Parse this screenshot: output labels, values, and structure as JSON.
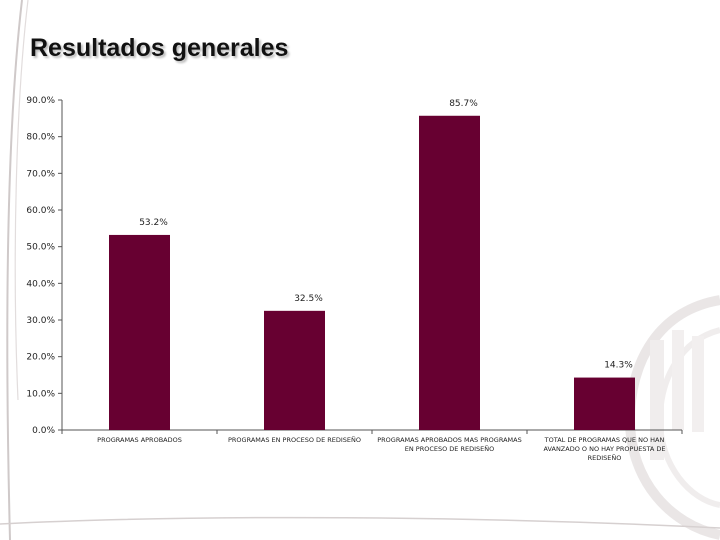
{
  "slide": {
    "title": "Resultados generales",
    "colors": {
      "bar": "#670031",
      "title_shadow": "#b9b9b9",
      "frame": "#cfc9c9",
      "watermark": "#d9d3d3"
    },
    "decor_icon": "ipn-watermark-logo"
  },
  "chart_data": {
    "type": "bar",
    "categories": [
      [
        "PROGRAMAS APROBADOS"
      ],
      [
        "PROGRAMAS EN PROCESO DE REDISEÑO"
      ],
      [
        "PROGRAMAS APROBADOS MAS PROGRAMAS",
        "EN PROCESO DE REDISEÑO"
      ],
      [
        "TOTAL DE PROGRAMAS QUE NO HAN",
        "AVANZADO O NO HAY PROPUESTA DE",
        "REDISEÑO"
      ]
    ],
    "values": [
      53.2,
      32.5,
      85.7,
      14.3
    ],
    "data_labels": [
      "53.2%",
      "32.5%",
      "85.7%",
      "14.3%"
    ],
    "yticks": [
      "0.0%",
      "10.0%",
      "20.0%",
      "30.0%",
      "40.0%",
      "50.0%",
      "60.0%",
      "70.0%",
      "80.0%",
      "90.0%"
    ],
    "ylim": [
      0,
      90
    ],
    "grid": false,
    "legend": "none"
  }
}
